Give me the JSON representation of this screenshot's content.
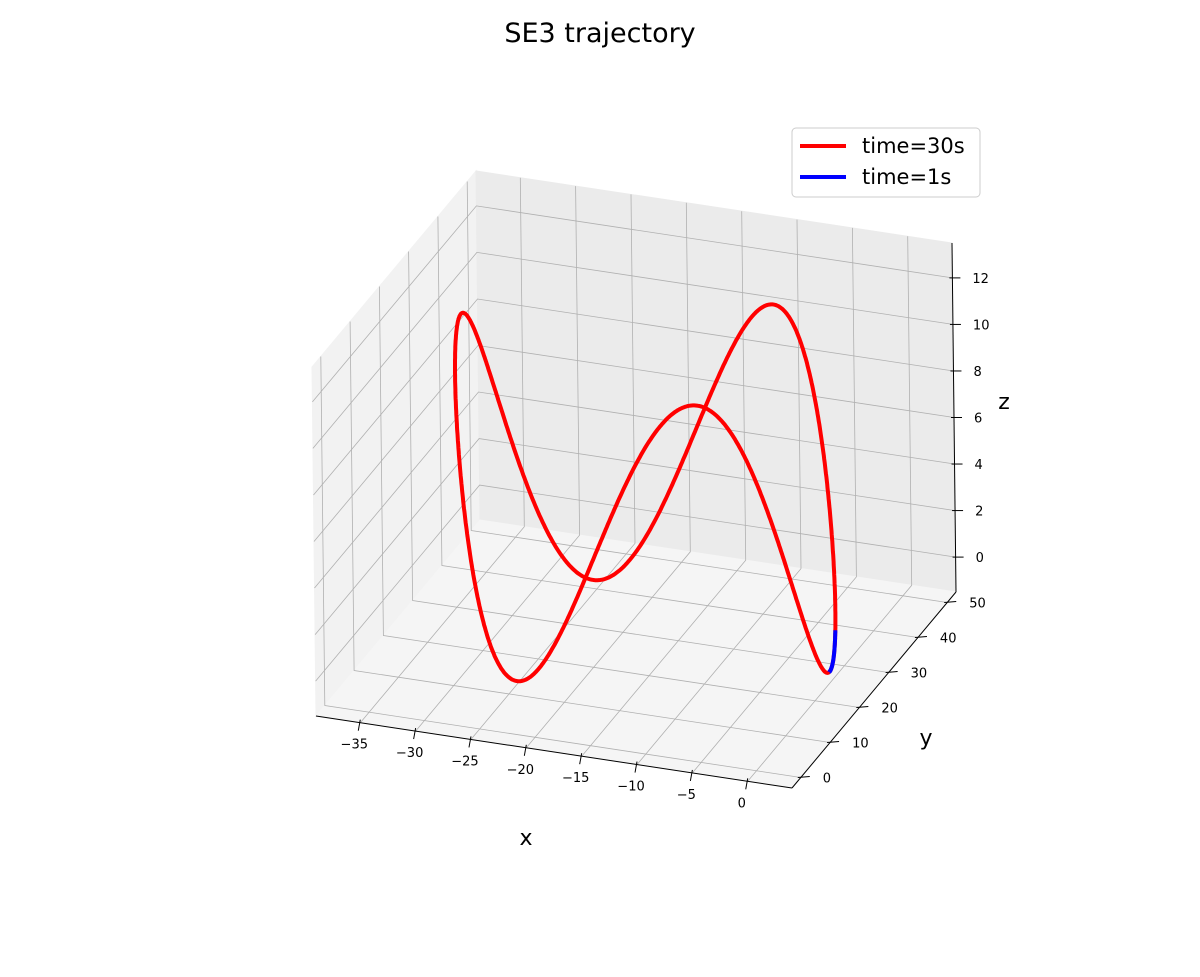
{
  "chart_data": {
    "type": "line",
    "projection": "3d",
    "title": "SE3  trajectory",
    "xlabel": "x",
    "ylabel": "y",
    "zlabel": "z",
    "xlim": [
      -39,
      4
    ],
    "ylim": [
      -3,
      53
    ],
    "zlim": [
      -1.5,
      13.5
    ],
    "x_ticks": [
      "−35",
      "−30",
      "−25",
      "−20",
      "−15",
      "−10",
      "−5",
      "0"
    ],
    "x_tick_values": [
      -35,
      -30,
      -25,
      -20,
      -15,
      -10,
      -5,
      0
    ],
    "y_ticks": [
      "0",
      "10",
      "20",
      "30",
      "40",
      "50"
    ],
    "y_tick_values": [
      0,
      10,
      20,
      30,
      40,
      50
    ],
    "z_ticks": [
      "0",
      "2",
      "4",
      "6",
      "8",
      "10",
      "12"
    ],
    "z_tick_values": [
      0,
      2,
      4,
      6,
      8,
      10,
      12
    ],
    "grid": true,
    "legend_position": "top-right",
    "series": [
      {
        "name": "time=30s",
        "color": "#ff0000",
        "shape": "helix",
        "center_x": -16.5,
        "center_y": 25,
        "radius": 16.5,
        "z_center": 5.5,
        "z_amplitude": 6.5,
        "z_turns": 3,
        "t_range": [
          0,
          30
        ]
      },
      {
        "name": "time=1s",
        "color": "#0000ff",
        "shape": "helix",
        "center_x": -16.5,
        "center_y": 25,
        "radius": 16.5,
        "z_center": 5.5,
        "z_amplitude": 6.5,
        "z_turns": 3,
        "t_range": [
          0,
          1
        ]
      }
    ]
  }
}
